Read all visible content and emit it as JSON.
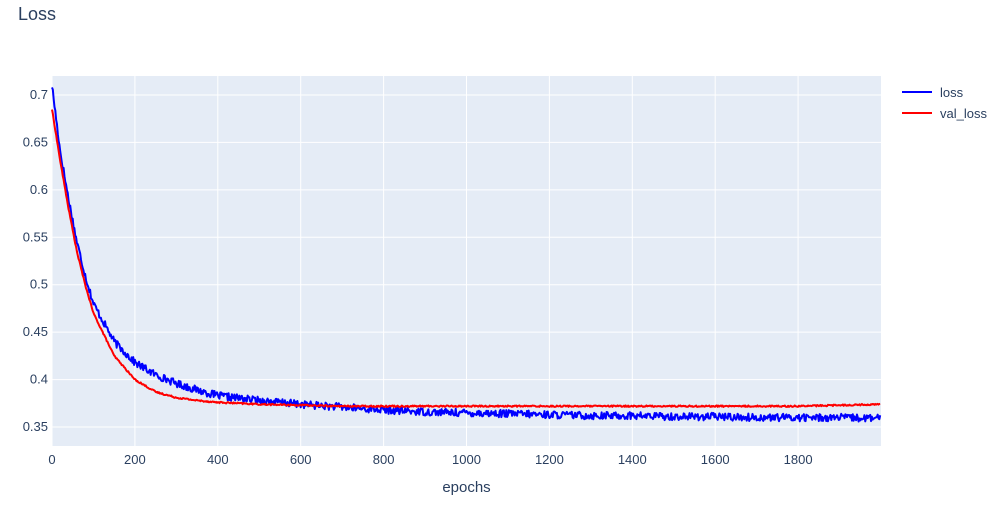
{
  "chart_data": {
    "type": "line",
    "title": "Loss",
    "xlabel": "epochs",
    "ylabel": "",
    "xlim": [
      0,
      2000
    ],
    "ylim": [
      0.33,
      0.72
    ],
    "x_ticks": [
      0,
      200,
      400,
      600,
      800,
      1000,
      1200,
      1400,
      1600,
      1800
    ],
    "y_ticks": [
      0.35,
      0.4,
      0.45,
      0.5,
      0.55,
      0.6,
      0.65,
      0.7
    ],
    "grid": true,
    "legend_position": "top-right",
    "plot_background": "#e5ecf6",
    "series": [
      {
        "name": "loss",
        "color": "#0000ff",
        "noise": 0.004,
        "x": [
          0,
          20,
          40,
          60,
          80,
          100,
          150,
          200,
          250,
          300,
          350,
          400,
          500,
          600,
          700,
          800,
          900,
          1000,
          1100,
          1200,
          1300,
          1400,
          1500,
          1600,
          1700,
          1800,
          1900,
          2000
        ],
        "y": [
          0.71,
          0.64,
          0.59,
          0.545,
          0.51,
          0.48,
          0.44,
          0.418,
          0.405,
          0.396,
          0.389,
          0.383,
          0.378,
          0.374,
          0.371,
          0.368,
          0.366,
          0.365,
          0.364,
          0.363,
          0.362,
          0.362,
          0.361,
          0.361,
          0.36,
          0.36,
          0.36,
          0.359
        ]
      },
      {
        "name": "val_loss",
        "color": "#ff0000",
        "noise": 0.0008,
        "x": [
          0,
          20,
          40,
          60,
          80,
          100,
          150,
          200,
          250,
          300,
          350,
          400,
          500,
          600,
          700,
          800,
          900,
          1000,
          1100,
          1200,
          1300,
          1400,
          1500,
          1600,
          1700,
          1800,
          1900,
          2000
        ],
        "y": [
          0.685,
          0.63,
          0.58,
          0.535,
          0.5,
          0.47,
          0.425,
          0.4,
          0.387,
          0.381,
          0.378,
          0.376,
          0.374,
          0.373,
          0.372,
          0.372,
          0.372,
          0.372,
          0.372,
          0.372,
          0.372,
          0.372,
          0.372,
          0.372,
          0.372,
          0.372,
          0.373,
          0.374
        ]
      }
    ]
  }
}
